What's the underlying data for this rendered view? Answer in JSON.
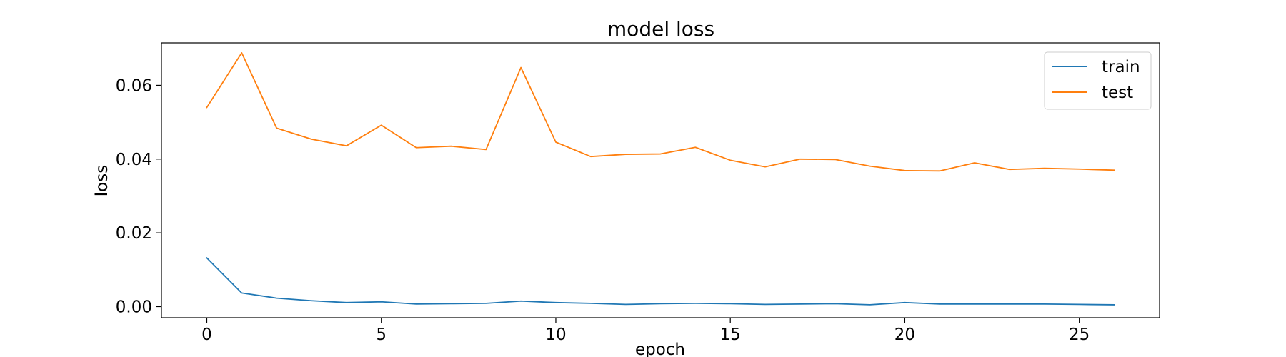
{
  "chart_data": {
    "type": "line",
    "title": "model loss",
    "xlabel": "epoch",
    "ylabel": "loss",
    "xlim": [
      -1.3,
      27.3
    ],
    "ylim": [
      -0.003,
      0.0715
    ],
    "xticks": [
      0,
      5,
      10,
      15,
      20,
      25
    ],
    "yticks": [
      0.0,
      0.02,
      0.04,
      0.06
    ],
    "ytick_labels": [
      "0.00",
      "0.02",
      "0.04",
      "0.06"
    ],
    "grid": false,
    "legend_position": "top-right",
    "x": [
      0,
      1,
      2,
      3,
      4,
      5,
      6,
      7,
      8,
      9,
      10,
      11,
      12,
      13,
      14,
      15,
      16,
      17,
      18,
      19,
      20,
      21,
      22,
      23,
      24,
      25,
      26
    ],
    "series": [
      {
        "name": "train",
        "color": "#1f77b4",
        "values": [
          0.0132,
          0.0037,
          0.0023,
          0.0016,
          0.0011,
          0.0013,
          0.0007,
          0.0008,
          0.0009,
          0.0015,
          0.0011,
          0.0009,
          0.0006,
          0.0008,
          0.0009,
          0.0008,
          0.0006,
          0.0007,
          0.0008,
          0.0005,
          0.0011,
          0.0007,
          0.0007,
          0.0007,
          0.0007,
          0.0006,
          0.0005
        ]
      },
      {
        "name": "test",
        "color": "#ff7f0e",
        "values": [
          0.054,
          0.0688,
          0.0484,
          0.0454,
          0.0436,
          0.0492,
          0.0431,
          0.0435,
          0.0426,
          0.0648,
          0.0446,
          0.0407,
          0.0413,
          0.0414,
          0.0432,
          0.0397,
          0.0379,
          0.04,
          0.0399,
          0.0381,
          0.0369,
          0.0368,
          0.039,
          0.0372,
          0.0375,
          0.0373,
          0.037
        ]
      }
    ]
  }
}
